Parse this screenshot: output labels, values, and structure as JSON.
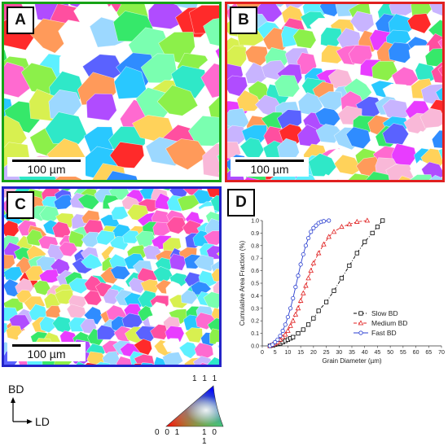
{
  "panels": [
    {
      "letter": "A",
      "scale_label": "100 µm",
      "border_color": "#16a316"
    },
    {
      "letter": "B",
      "scale_label": "100 µm",
      "border_color": "#e02020"
    },
    {
      "letter": "C",
      "scale_label": "100 µm",
      "border_color": "#2323c8"
    }
  ],
  "panel_d_letter": "D",
  "chart_data": {
    "type": "line",
    "title": "",
    "xlabel": "Grain Diameter (µm)",
    "ylabel": "Cumulative Area Fraction (%)",
    "xlim": [
      0,
      70
    ],
    "ylim": [
      0,
      1.0
    ],
    "xticks": [
      0,
      5,
      10,
      15,
      20,
      25,
      30,
      35,
      40,
      45,
      50,
      55,
      60,
      65,
      70
    ],
    "yticks": [
      0.0,
      0.1,
      0.2,
      0.3,
      0.4,
      0.5,
      0.6,
      0.7,
      0.8,
      0.9,
      1.0
    ],
    "grid": false,
    "legend": "lower-right",
    "series": [
      {
        "name": "Slow BD",
        "color": "#000000",
        "marker": "square",
        "dash": "dashdot",
        "x": [
          3,
          4,
          5,
          6,
          7,
          8,
          9,
          10,
          11,
          12,
          14,
          16,
          18,
          20,
          22,
          25,
          28,
          31,
          34,
          37,
          40,
          43,
          45,
          47
        ],
        "y": [
          0.0,
          0.005,
          0.01,
          0.015,
          0.02,
          0.03,
          0.04,
          0.05,
          0.06,
          0.07,
          0.1,
          0.13,
          0.17,
          0.22,
          0.28,
          0.35,
          0.44,
          0.54,
          0.64,
          0.74,
          0.83,
          0.9,
          0.95,
          1.0
        ]
      },
      {
        "name": "Medium BD",
        "color": "#e02020",
        "marker": "triangle",
        "dash": "dashed",
        "x": [
          3,
          4,
          5,
          6,
          7,
          8,
          9,
          10,
          11,
          12,
          13,
          14,
          15,
          16,
          17,
          18,
          19,
          20,
          22,
          24,
          26,
          28,
          31,
          34,
          37,
          41
        ],
        "y": [
          0.0,
          0.01,
          0.02,
          0.03,
          0.05,
          0.07,
          0.09,
          0.12,
          0.16,
          0.2,
          0.25,
          0.3,
          0.36,
          0.42,
          0.48,
          0.54,
          0.6,
          0.66,
          0.74,
          0.81,
          0.87,
          0.91,
          0.95,
          0.97,
          0.99,
          1.0
        ]
      },
      {
        "name": "Fast BD",
        "color": "#2a3fd0",
        "marker": "circle",
        "dash": "solid",
        "x": [
          3,
          4,
          5,
          6,
          7,
          8,
          9,
          10,
          11,
          12,
          13,
          14,
          15,
          16,
          17,
          18,
          19,
          20,
          21,
          22,
          23,
          24,
          26
        ],
        "y": [
          0.0,
          0.01,
          0.03,
          0.05,
          0.08,
          0.12,
          0.17,
          0.23,
          0.3,
          0.38,
          0.47,
          0.56,
          0.65,
          0.73,
          0.8,
          0.86,
          0.91,
          0.94,
          0.96,
          0.98,
          0.99,
          0.995,
          1.0
        ]
      }
    ]
  },
  "axes_key": {
    "vertical": "BD",
    "horizontal": "LD"
  },
  "ipf_key": {
    "top": "1 1 1",
    "left": "0 0 1",
    "right": "1 0 1"
  }
}
